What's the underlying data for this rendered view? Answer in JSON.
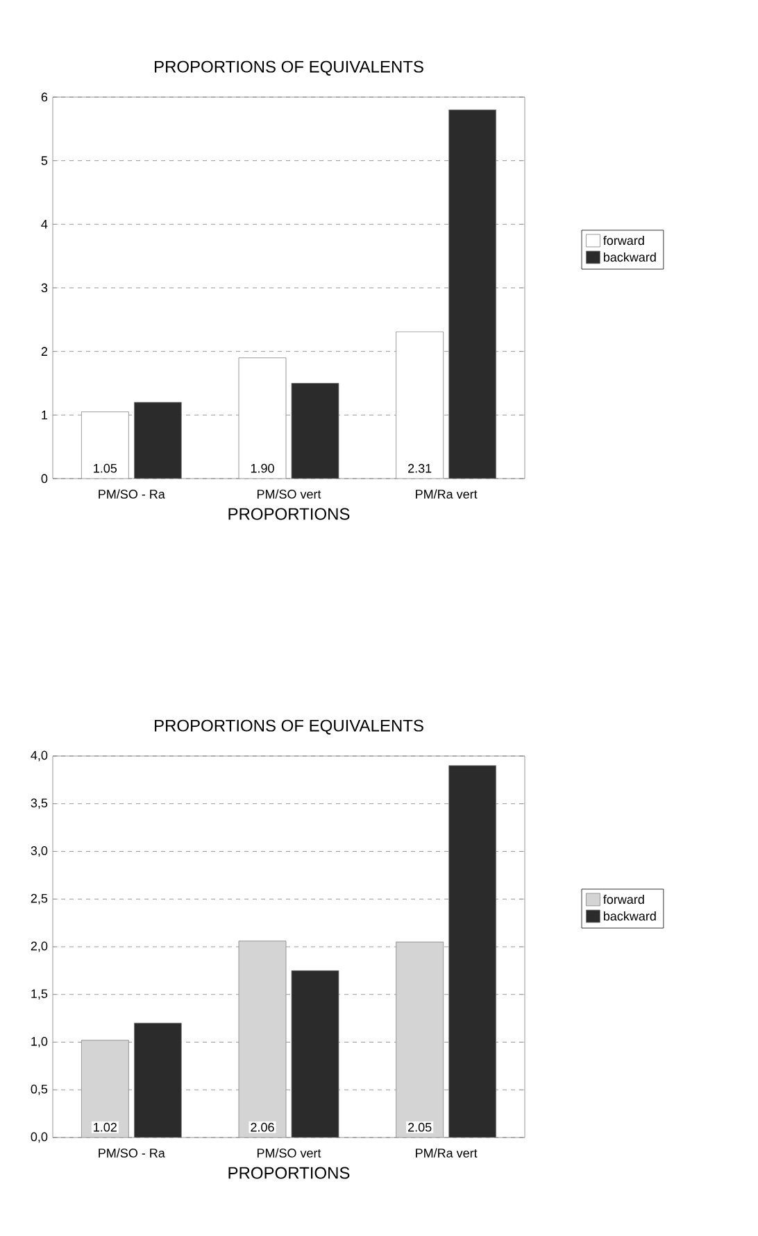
{
  "chart_data": [
    {
      "type": "bar",
      "title": "PROPORTIONS OF EQUIVALENTS",
      "xlabel": "PROPORTIONS",
      "categories": [
        "PM/SO - Ra",
        "PM/SO vert",
        "PM/Ra vert"
      ],
      "series": [
        {
          "name": "forward",
          "color": "#ffffff",
          "values": [
            1.05,
            1.9,
            2.31
          ],
          "value_labels": [
            "1.05",
            "1.90",
            "2.31"
          ]
        },
        {
          "name": "backward",
          "color": "#2b2b2b",
          "values": [
            1.2,
            1.5,
            5.8
          ]
        }
      ],
      "ylim": [
        0,
        6
      ],
      "yticks": [
        0,
        1,
        2,
        3,
        4,
        5,
        6
      ],
      "grid": "y",
      "legend": "right"
    },
    {
      "type": "bar",
      "title": "PROPORTIONS OF EQUIVALENTS",
      "xlabel": "PROPORTIONS",
      "categories": [
        "PM/SO - Ra",
        "PM/SO vert",
        "PM/Ra vert"
      ],
      "series": [
        {
          "name": "forward",
          "color": "#d4d4d4",
          "values": [
            1.02,
            2.06,
            2.05
          ],
          "value_labels": [
            "1.02",
            "2.06",
            "2.05"
          ]
        },
        {
          "name": "backward",
          "color": "#2b2b2b",
          "values": [
            1.2,
            1.75,
            3.9
          ]
        }
      ],
      "ylim": [
        0,
        4
      ],
      "yticks": [
        {
          "value": 0,
          "label": "0,0"
        },
        {
          "value": 0.5,
          "label": "0,5"
        },
        {
          "value": 1,
          "label": "1,0"
        },
        {
          "value": 1.5,
          "label": "1,5"
        },
        {
          "value": 2,
          "label": "2,0"
        },
        {
          "value": 2.5,
          "label": "2,5"
        },
        {
          "value": 3,
          "label": "3,0"
        },
        {
          "value": 3.5,
          "label": "3,5"
        },
        {
          "value": 4,
          "label": "4,0"
        }
      ],
      "grid": "y",
      "legend": "right"
    }
  ]
}
